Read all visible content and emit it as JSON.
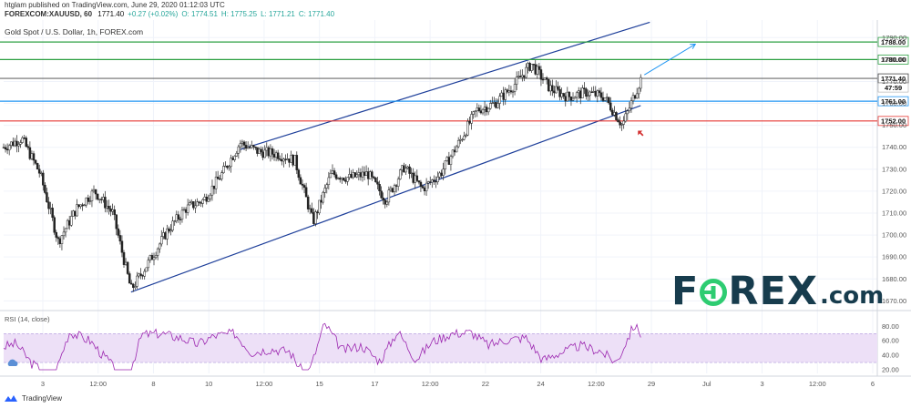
{
  "header": {
    "published_line": "htglam published on TradingView.com, June 29, 2020 01:12:03 UTC",
    "symbol": "FOREXCOM:XAUUSD, 60",
    "ohlc": [
      {
        "value": "1771.40",
        "color": "#111111"
      },
      {
        "value": "+0.27 (+0.02%)",
        "color": "#26a69a"
      },
      {
        "label": "O:",
        "value": "1774.51",
        "color": "#26a69a"
      },
      {
        "label": "H:",
        "value": "1775.25",
        "color": "#26a69a"
      },
      {
        "label": "L:",
        "value": "1771.21",
        "color": "#26a69a"
      },
      {
        "label": "C:",
        "value": "1771.40",
        "color": "#26a69a"
      }
    ],
    "chart_title": "Gold Spot / U.S. Dollar, 1h, FOREX.com"
  },
  "rsi_label": "RSI (14, close)",
  "logo": {
    "left": "F",
    "right": "REX",
    "domain": ".com"
  },
  "footer": {
    "brand": "TradingView"
  },
  "colors": {
    "green_level": "#2ea043",
    "blue_level": "#2196f3",
    "red_level": "#e53935",
    "channel": "#1e3f9a",
    "rsi": "#9c27b0",
    "rsi_band": "#ede0f7",
    "logo_dark": "#173c4d",
    "logo_green": "#2ecc71"
  },
  "chart_data": {
    "type": "candlestick",
    "title": "Gold Spot / U.S. Dollar, 1h, FOREX.com",
    "price_axis": {
      "ylim": [
        1666,
        1798
      ],
      "ticks": [
        1670,
        1680,
        1690,
        1700,
        1710,
        1720,
        1730,
        1740,
        1750,
        1760,
        1770,
        1780,
        1790
      ]
    },
    "time_axis": {
      "ticks": [
        "3",
        "12:00",
        "8",
        "10",
        "12:00",
        "15",
        "17",
        "12:00",
        "22",
        "24",
        "12:00",
        "29",
        "Jul",
        "3",
        "12:00",
        "6"
      ]
    },
    "price_path": [
      {
        "t": 0.0,
        "p": 1740
      },
      {
        "t": 1.0,
        "p": 1744
      },
      {
        "t": 2.0,
        "p": 1728
      },
      {
        "t": 3.0,
        "p": 1697
      },
      {
        "t": 4.0,
        "p": 1712
      },
      {
        "t": 5.0,
        "p": 1720
      },
      {
        "t": 6.0,
        "p": 1710
      },
      {
        "t": 7.0,
        "p": 1675
      },
      {
        "t": 8.0,
        "p": 1688
      },
      {
        "t": 9.0,
        "p": 1702
      },
      {
        "t": 10.0,
        "p": 1712
      },
      {
        "t": 11.0,
        "p": 1716
      },
      {
        "t": 12.0,
        "p": 1728
      },
      {
        "t": 13.0,
        "p": 1742
      },
      {
        "t": 14.0,
        "p": 1738
      },
      {
        "t": 15.0,
        "p": 1737
      },
      {
        "t": 16.0,
        "p": 1734
      },
      {
        "t": 17.0,
        "p": 1706
      },
      {
        "t": 18.0,
        "p": 1728
      },
      {
        "t": 19.0,
        "p": 1726
      },
      {
        "t": 20.0,
        "p": 1728
      },
      {
        "t": 21.0,
        "p": 1716
      },
      {
        "t": 22.0,
        "p": 1731
      },
      {
        "t": 23.0,
        "p": 1721
      },
      {
        "t": 24.0,
        "p": 1728
      },
      {
        "t": 25.0,
        "p": 1742
      },
      {
        "t": 26.0,
        "p": 1757
      },
      {
        "t": 27.0,
        "p": 1760
      },
      {
        "t": 28.0,
        "p": 1768
      },
      {
        "t": 29.0,
        "p": 1778
      },
      {
        "t": 30.0,
        "p": 1767
      },
      {
        "t": 31.0,
        "p": 1763
      },
      {
        "t": 32.0,
        "p": 1765
      },
      {
        "t": 33.0,
        "p": 1763
      },
      {
        "t": 34.0,
        "p": 1750
      },
      {
        "t": 35.0,
        "p": 1771
      }
    ],
    "rsi": {
      "ylim": [
        15,
        88
      ],
      "ticks": [
        20,
        40,
        60,
        80
      ],
      "band": [
        30,
        70
      ]
    },
    "horizontal_levels": [
      {
        "value": 1788,
        "label": "1788.00",
        "color": "#2ea043"
      },
      {
        "value": 1780,
        "label": "1780.00",
        "color": "#2ea043"
      },
      {
        "value": 1771.4,
        "label": "1771.40",
        "color": "#444444",
        "countdown": "47:59"
      },
      {
        "value": 1761,
        "label": "1761.00",
        "color": "#2196f3"
      },
      {
        "value": 1752,
        "label": "1752.00",
        "color": "#e53935"
      }
    ],
    "channel": {
      "upper": [
        {
          "t": 13.0,
          "p": 1739
        },
        {
          "t": 35.5,
          "p": 1797
        }
      ],
      "lower": [
        {
          "t": 7.0,
          "p": 1674
        },
        {
          "t": 35.0,
          "p": 1759
        }
      ]
    },
    "projection_arrow": {
      "from": {
        "t": 35.2,
        "p": 1773
      },
      "to": {
        "t": 38.0,
        "p": 1787
      }
    },
    "marker_arrow": {
      "t": 35.0,
      "p": 1748
    }
  }
}
